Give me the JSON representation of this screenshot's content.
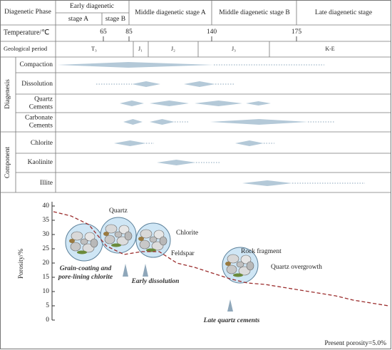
{
  "header": {
    "phase_label": "Diagenetic Phase",
    "early": "Early diagenetic",
    "early_substages": [
      "stage A",
      "stage B"
    ],
    "stages": [
      "Middle diagenetic stage A",
      "Middle diagenetic stage B",
      "Late diagenetic stage"
    ],
    "temperature_label": "Temperature/℃",
    "temperatures": [
      65,
      85,
      140,
      175
    ],
    "period_label": "Geological period",
    "periods": [
      "T₃",
      "J₁",
      "J₂",
      "J₃",
      "K-E"
    ]
  },
  "diagenesis": {
    "label": "Diagenesis",
    "processes": [
      [
        "Compaction"
      ],
      [
        "Dissolution"
      ],
      [
        "Quartz",
        "Cements"
      ],
      [
        "Carbonate",
        "Cements"
      ]
    ]
  },
  "component": {
    "label": "Component",
    "processes": [
      [
        "Chlorite"
      ],
      [
        "Kaolinite"
      ],
      [
        "Illite"
      ]
    ]
  },
  "porosity": {
    "y_label": "Porosity/%",
    "ylim": [
      0,
      40
    ],
    "yticks": [
      0,
      5,
      10,
      15,
      20,
      25,
      30,
      35,
      40
    ],
    "curve": [
      38,
      36.5,
      33.5,
      26,
      23,
      24,
      24,
      20,
      18.5,
      16.5,
      14.5,
      13,
      12.5,
      11.5,
      10.5,
      9.5,
      8.5,
      7,
      6,
      5
    ],
    "annotations": [
      "Quartz",
      "Chlorite",
      "Feldspar",
      "Grain-coating and",
      "pore-lining chlorite",
      "Early dissolution",
      "Rock fragment",
      "Quartz overgrowth",
      "Late quartz cements"
    ],
    "present": "Present porosity=5.0%"
  }
}
